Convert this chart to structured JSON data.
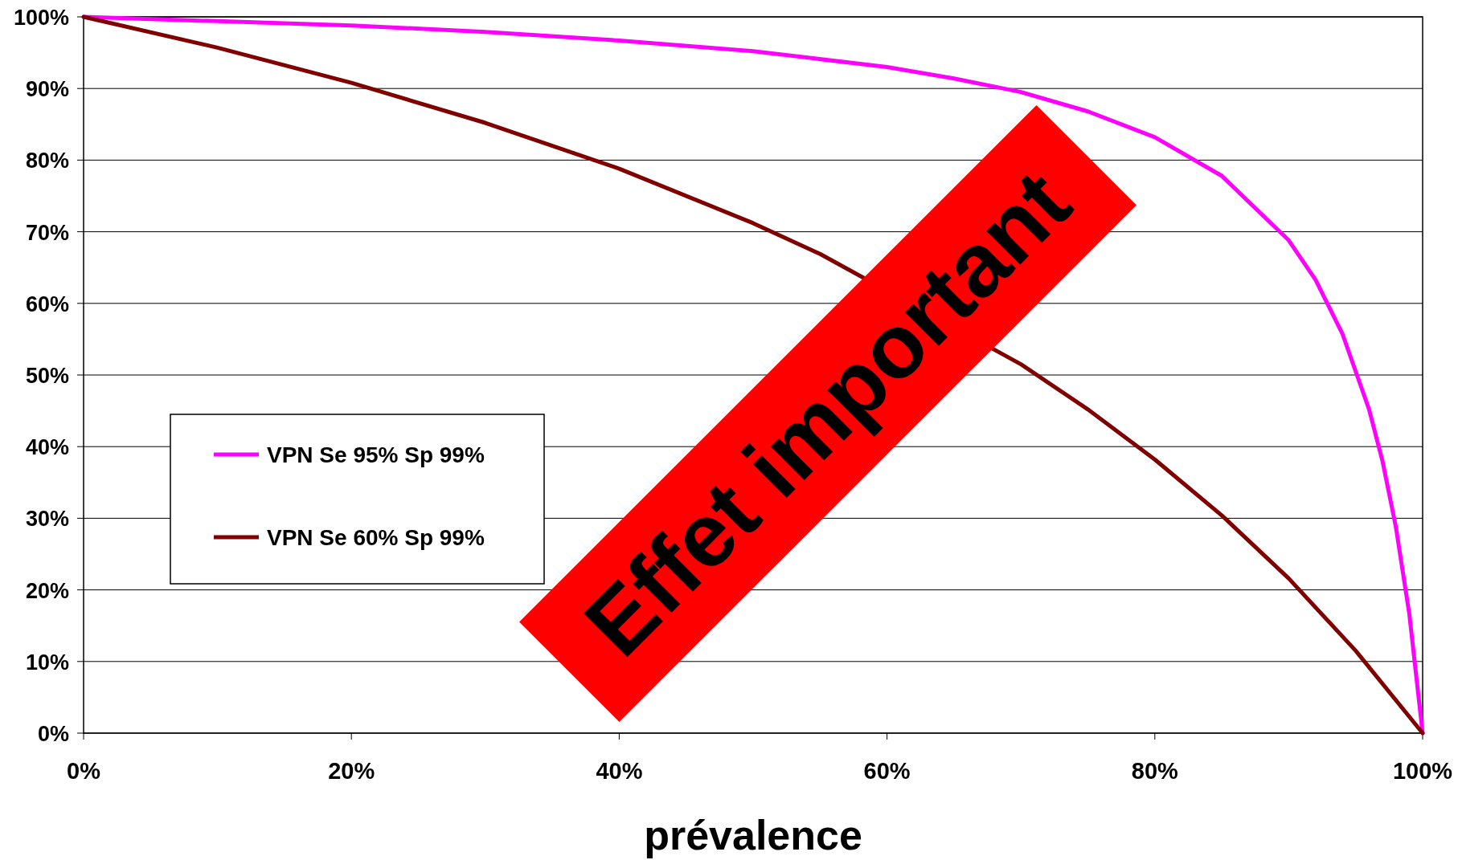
{
  "chart_data": {
    "type": "line",
    "xlabel": "prévalence",
    "x": [
      0,
      10,
      20,
      30,
      40,
      50,
      60,
      65,
      70,
      75,
      80,
      85,
      90,
      92,
      94,
      96,
      97,
      98,
      99,
      100
    ],
    "series": [
      {
        "name": "VPN Se 95% Sp 99%",
        "color": "#ff00ff",
        "values": [
          100,
          99.4,
          98.8,
          97.9,
          96.7,
          95.2,
          93,
          91.4,
          89.5,
          86.8,
          83.2,
          77.8,
          68.8,
          63.3,
          55.8,
          45.2,
          38,
          28.8,
          16.7,
          0
        ]
      },
      {
        "name": "VPN Se 60% Sp 99%",
        "color": "#800000",
        "x": [
          0,
          10,
          20,
          30,
          40,
          50,
          55,
          60,
          70,
          75,
          80,
          85,
          90,
          95,
          100
        ],
        "values": [
          100,
          95.7,
          90.8,
          85.2,
          78.8,
          71.2,
          66.9,
          null,
          51.5,
          45.2,
          38.2,
          30.4,
          21.6,
          11.5,
          0
        ]
      }
    ],
    "xlim": [
      0,
      100
    ],
    "ylim": [
      0,
      100
    ],
    "xticks": [
      {
        "value": 0,
        "label": "0%"
      },
      {
        "value": 20,
        "label": "20%"
      },
      {
        "value": 40,
        "label": "40%"
      },
      {
        "value": 60,
        "label": "60%"
      },
      {
        "value": 80,
        "label": "80%"
      },
      {
        "value": 100,
        "label": "100%"
      }
    ],
    "yticks": [
      {
        "value": 0,
        "label": "0%"
      },
      {
        "value": 10,
        "label": "10%"
      },
      {
        "value": 20,
        "label": "20%"
      },
      {
        "value": 30,
        "label": "30%"
      },
      {
        "value": 40,
        "label": "40%"
      },
      {
        "value": 50,
        "label": "50%"
      },
      {
        "value": 60,
        "label": "60%"
      },
      {
        "value": 70,
        "label": "70%"
      },
      {
        "value": 80,
        "label": "80%"
      },
      {
        "value": 90,
        "label": "90%"
      },
      {
        "value": 100,
        "label": "100%"
      }
    ],
    "grid": "y",
    "legend": "left",
    "marker": "none",
    "line_style": "solid",
    "annotations": [
      "Effet important"
    ]
  }
}
